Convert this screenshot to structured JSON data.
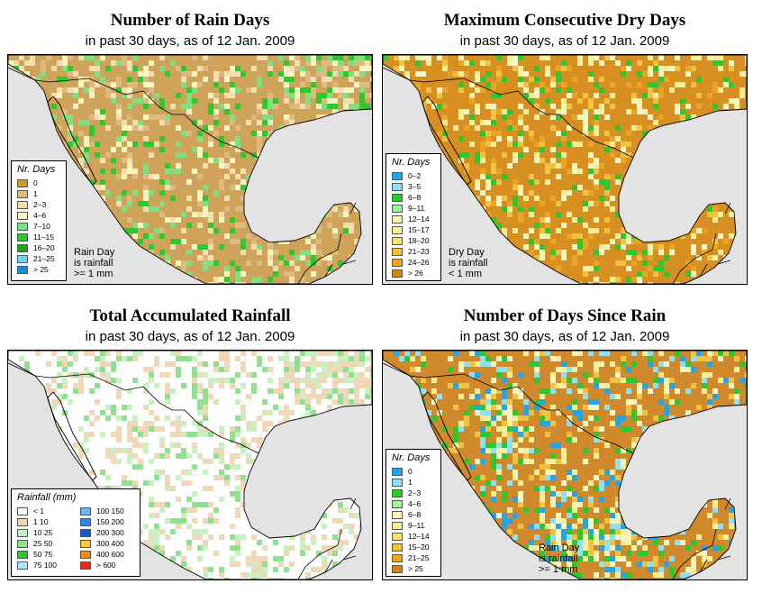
{
  "panels": [
    {
      "title": "Number of Rain Days",
      "subtitle": "in past 30 days, as of  12 Jan. 2009",
      "legend_title": "Nr. Days",
      "note": [
        "Rain Day",
        "is rainfall",
        ">= 1 mm"
      ],
      "legend": [
        {
          "label": "0",
          "color": "#c89b3c"
        },
        {
          "label": "1",
          "color": "#ddbb7f"
        },
        {
          "label": "2–3",
          "color": "#f5ddb0"
        },
        {
          "label": "4–6",
          "color": "#f7f6c0"
        },
        {
          "label": "7–10",
          "color": "#7fe07f"
        },
        {
          "label": "11–15",
          "color": "#2ec72e"
        },
        {
          "label": "16–20",
          "color": "#1aa51a"
        },
        {
          "label": "21–25",
          "color": "#6fd5f5"
        },
        {
          "label": "> 25",
          "color": "#1b8fd5"
        }
      ],
      "land": "#cfa45a",
      "speckle": [
        "#ddbb7f",
        "#f5ddb0",
        "#f7f6c0",
        "#2ec72e",
        "#7fe07f"
      ]
    },
    {
      "title": "Maximum Consecutive Dry Days",
      "subtitle": "in past 30 days, as of  12 Jan. 2009",
      "legend_title": "Nr. Days",
      "note": [
        "Dry Day",
        "is rainfall",
        "< 1 mm"
      ],
      "legend": [
        {
          "label": "0–2",
          "color": "#25a5e8"
        },
        {
          "label": "3–5",
          "color": "#8fe0f5"
        },
        {
          "label": "6–8",
          "color": "#2ec72e"
        },
        {
          "label": "9–11",
          "color": "#9ff09f"
        },
        {
          "label": "12–14",
          "color": "#f7f5c0"
        },
        {
          "label": "15–17",
          "color": "#f7ee9a"
        },
        {
          "label": "18–20",
          "color": "#f5e070"
        },
        {
          "label": "21–23",
          "color": "#f2c340"
        },
        {
          "label": "24–26",
          "color": "#eba523"
        },
        {
          "label": "> 26",
          "color": "#cf8420"
        }
      ],
      "land": "#d88f22",
      "speckle": [
        "#eba523",
        "#f2c340",
        "#f7ee9a",
        "#f7f5c0",
        "#2ec72e"
      ]
    },
    {
      "title": "Total Accumulated Rainfall",
      "subtitle": "in past 30 days, as of  12 Jan. 2009",
      "legend_title": "Rainfall (mm)",
      "note": [],
      "legend": [
        {
          "label": "< 1",
          "color": "#ffffff"
        },
        {
          "label": "1    10",
          "color": "#eed8b8"
        },
        {
          "label": "10    25",
          "color": "#c8f0c0"
        },
        {
          "label": "25    50",
          "color": "#8fe08f"
        },
        {
          "label": "50    75",
          "color": "#36c236"
        },
        {
          "label": "75    100",
          "color": "#a8e8f0"
        },
        {
          "label": "100    150",
          "color": "#6ab7f5"
        },
        {
          "label": "150    200",
          "color": "#2f88e8"
        },
        {
          "label": "200    300",
          "color": "#1e55c8"
        },
        {
          "label": "300    400",
          "color": "#f5cd3a"
        },
        {
          "label": "400    600",
          "color": "#f08a1e"
        },
        {
          "label": "> 600",
          "color": "#e62a12"
        }
      ],
      "land": "#ffffff",
      "speckle": [
        "#eed8b8",
        "#eed8b8",
        "#c8f0c0",
        "#8fe08f"
      ]
    },
    {
      "title": "Number of Days Since Rain",
      "subtitle": "in past 30 days, as of  12 Jan. 2009",
      "legend_title": "Nr. Days",
      "note": [
        "Rain Day",
        "is rainfall",
        ">= 1 mm"
      ],
      "legend": [
        {
          "label": "0",
          "color": "#25a5e8"
        },
        {
          "label": "1",
          "color": "#8fe0f5"
        },
        {
          "label": "2–3",
          "color": "#2ec72e"
        },
        {
          "label": "4–6",
          "color": "#9ff09f"
        },
        {
          "label": "6–8",
          "color": "#f7f5c0"
        },
        {
          "label": "9–11",
          "color": "#f7ee9a"
        },
        {
          "label": "12–14",
          "color": "#f5e070"
        },
        {
          "label": "15–20",
          "color": "#f2c340"
        },
        {
          "label": "21–25",
          "color": "#eba523"
        },
        {
          "label": "> 25",
          "color": "#cf8420"
        }
      ],
      "land": "#d08a2c",
      "speckle": [
        "#f7ee9a",
        "#f2c340",
        "#25a5e8",
        "#8fe0f5",
        "#2ec72e",
        "#f7f5c0"
      ]
    }
  ],
  "map_background": "#e3e3e3"
}
